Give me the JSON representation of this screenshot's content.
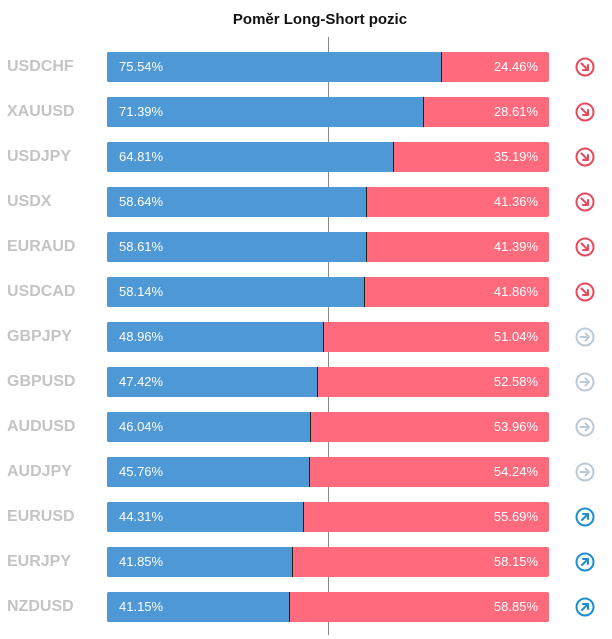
{
  "title": "Poměr Long-Short pozic",
  "colors": {
    "long": "#4e98d6",
    "short": "#ff6b7d",
    "down": "#e8495c",
    "neutral": "#bccad6",
    "up": "#1b8fd0"
  },
  "chart_data": {
    "type": "bar",
    "title": "Poměr Long-Short pozic",
    "stacked": true,
    "orientation": "horizontal",
    "xlim": [
      0,
      100
    ],
    "categories": [
      "USDCHF",
      "XAUUSD",
      "USDJPY",
      "USDX",
      "EURAUD",
      "USDCAD",
      "GBPJPY",
      "GBPUSD",
      "AUDUSD",
      "AUDJPY",
      "EURUSD",
      "EURJPY",
      "NZDUSD"
    ],
    "series": [
      {
        "values": [
          75.54,
          71.39,
          64.81,
          58.64,
          58.61,
          58.14,
          48.96,
          47.42,
          46.04,
          45.76,
          44.31,
          41.85,
          41.15
        ]
      },
      {
        "values": [
          24.46,
          28.61,
          35.19,
          41.36,
          41.39,
          41.86,
          51.04,
          52.58,
          53.96,
          54.24,
          55.69,
          58.15,
          58.85
        ]
      }
    ],
    "long_labels": [
      "75.54%",
      "71.39%",
      "64.81%",
      "58.64%",
      "58.61%",
      "58.14%",
      "48.96%",
      "47.42%",
      "46.04%",
      "45.76%",
      "44.31%",
      "41.85%",
      "41.15%"
    ],
    "short_labels": [
      "24.46%",
      "28.61%",
      "35.19%",
      "41.36%",
      "41.39%",
      "41.86%",
      "51.04%",
      "52.58%",
      "53.96%",
      "54.24%",
      "55.69%",
      "58.15%",
      "58.85%"
    ],
    "signals": [
      "down-arrow-icon",
      "down-arrow-icon",
      "down-arrow-icon",
      "down-arrow-icon",
      "down-arrow-icon",
      "down-arrow-icon",
      "right-arrow-icon",
      "right-arrow-icon",
      "right-arrow-icon",
      "right-arrow-icon",
      "up-arrow-icon",
      "up-arrow-icon",
      "up-arrow-icon"
    ]
  }
}
